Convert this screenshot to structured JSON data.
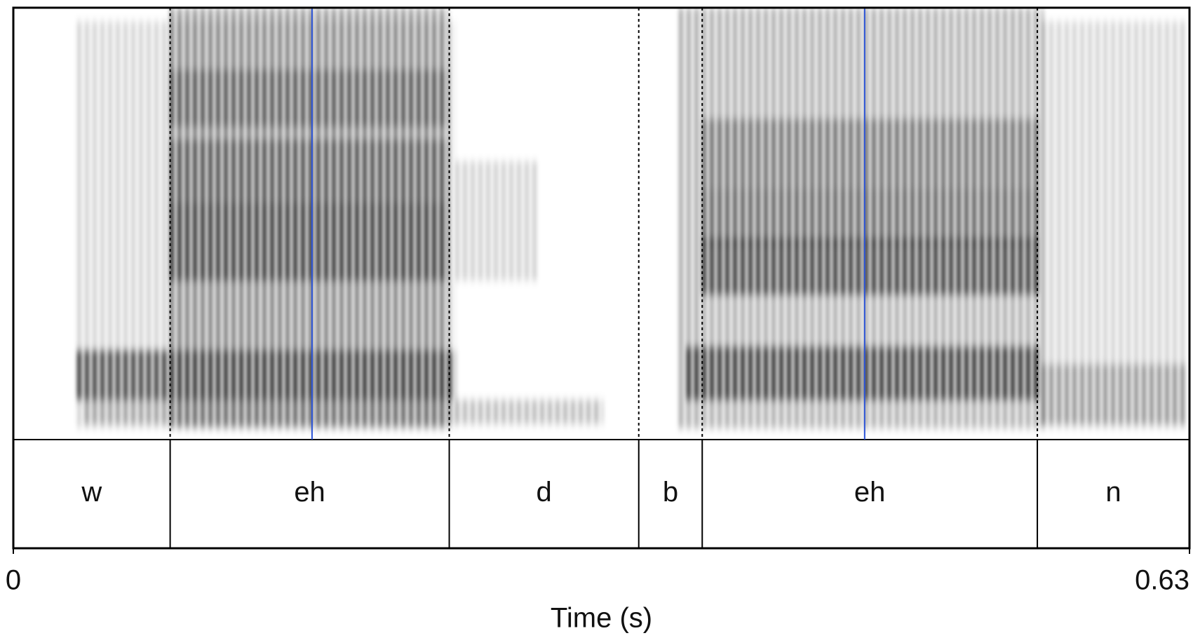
{
  "chart_data": {
    "type": "textgrid",
    "xlabel": "Time (s)",
    "xlim": [
      0,
      0.63
    ],
    "xticks": [
      0,
      0.63
    ],
    "intervals": [
      {
        "label": "w",
        "start": 0,
        "end": 0.084
      },
      {
        "label": "eh",
        "start": 0.084,
        "end": 0.2335
      },
      {
        "label": "d",
        "start": 0.2335,
        "end": 0.335
      },
      {
        "label": "b",
        "start": 0.335,
        "end": 0.369
      },
      {
        "label": "eh",
        "start": 0.369,
        "end": 0.5485
      },
      {
        "label": "n",
        "start": 0.5485,
        "end": 0.63
      }
    ],
    "markers": [
      0.16,
      0.456
    ],
    "marker_color": "#2a52d6"
  }
}
